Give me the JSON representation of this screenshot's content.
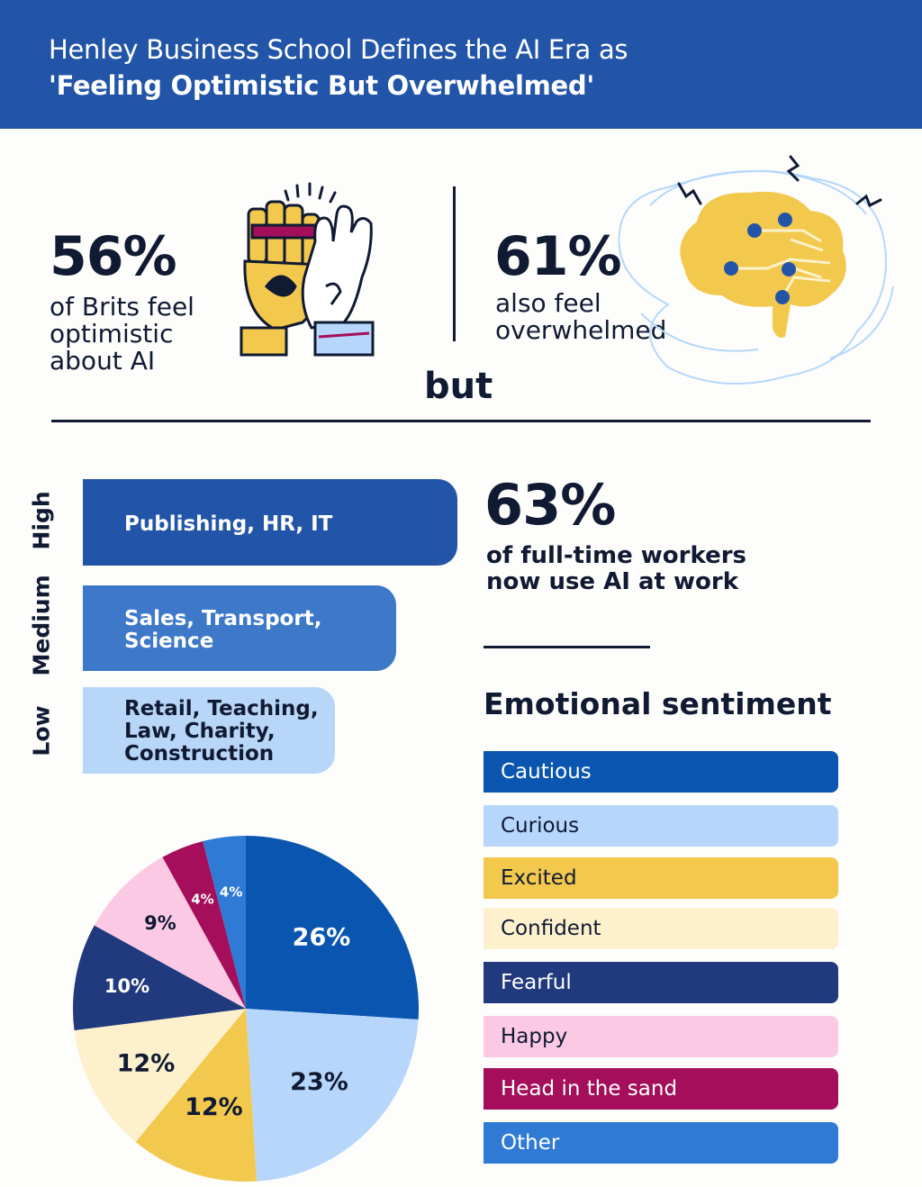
{
  "header": {
    "line1": "Henley Business School Defines the AI Era as",
    "line2": "'Feeling Optimistic But Overwhelmed'"
  },
  "stats": {
    "left": {
      "value": "56%",
      "text": "of Brits feel\noptimistic\nabout AI",
      "icon": "robot-human-high-five-icon"
    },
    "right": {
      "value": "61%",
      "text": "also feel\noverwhelmed",
      "icon": "brain-circuit-icon"
    },
    "connector": "but"
  },
  "usage_bars": {
    "levels": [
      {
        "level": "High",
        "industries": "Publishing, HR, IT",
        "color": "#2255a8",
        "text_color": "#ffffff"
      },
      {
        "level": "Medium",
        "industries": "Sales, Transport,\nScience",
        "color": "#3d78c9",
        "text_color": "#ffffff"
      },
      {
        "level": "Low",
        "industries": "Retail, Teaching,\nLaw, Charity,\nConstruction",
        "color": "#b8d6f8",
        "text_color": "#111a33"
      }
    ]
  },
  "workers_stat": {
    "value": "63%",
    "text": "of full-time workers\nnow use AI at work"
  },
  "sentiment": {
    "title": "Emotional sentiment"
  },
  "chart_data": {
    "type": "pie",
    "title": "Emotional sentiment",
    "series": [
      {
        "name": "Cautious",
        "value": 26,
        "label": "26%",
        "color": "#0a55b0",
        "text_color": "#ffffff"
      },
      {
        "name": "Curious",
        "value": 23,
        "label": "23%",
        "color": "#b6d7fb",
        "text_color": "#111a33"
      },
      {
        "name": "Excited",
        "value": 12,
        "label": "12%",
        "color": "#f2c94c",
        "text_color": "#111a33"
      },
      {
        "name": "Confident",
        "value": 12,
        "label": "12%",
        "color": "#fcf1cc",
        "text_color": "#111a33"
      },
      {
        "name": "Fearful",
        "value": 10,
        "label": "10%",
        "color": "#213a7d",
        "text_color": "#ffffff"
      },
      {
        "name": "Happy",
        "value": 9,
        "label": "9%",
        "color": "#fbc9e3",
        "text_color": "#111a33"
      },
      {
        "name": "Head in the sand",
        "value": 4,
        "label": "4%",
        "color": "#a40e5a",
        "text_color": "#ffffff"
      },
      {
        "name": "Other",
        "value": 4,
        "label": "4%",
        "color": "#2f7ad4",
        "text_color": "#ffffff"
      }
    ]
  }
}
